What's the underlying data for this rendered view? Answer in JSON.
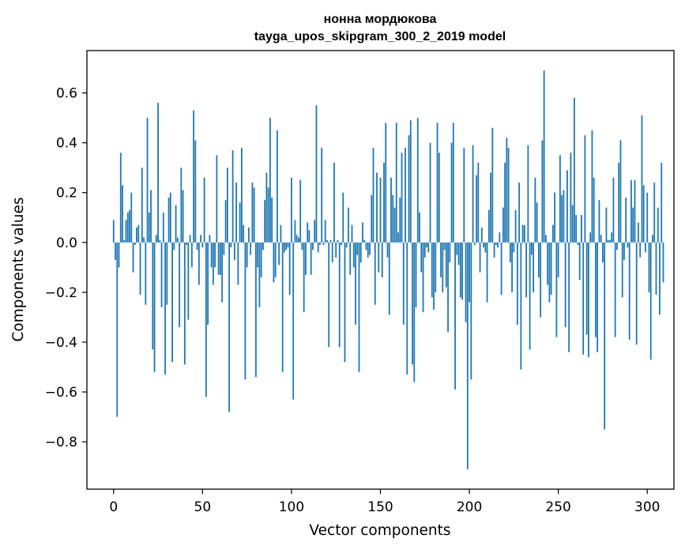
{
  "chart_data": {
    "type": "bar",
    "title": "нонна мордюкова",
    "subtitle": "tayga_upos_skipgram_300_2_2019 model",
    "xlabel": "Vector components",
    "ylabel": "Components values",
    "xlim": [
      -15,
      315
    ],
    "ylim": [
      -0.99,
      0.77
    ],
    "xticks": [
      0,
      50,
      100,
      150,
      200,
      250,
      300
    ],
    "yticks": [
      -0.8,
      -0.6,
      -0.4,
      -0.2,
      0.0,
      0.2,
      0.4,
      0.6
    ],
    "ytick_labels": [
      "−0.8",
      "−0.6",
      "−0.4",
      "−0.2",
      "0.0",
      "0.2",
      "0.4",
      "0.6"
    ],
    "bar_color": "#1f77b4",
    "grid": false,
    "values": [
      0.09,
      -0.07,
      -0.7,
      -0.1,
      0.36,
      0.23,
      0.01,
      0.09,
      0.12,
      0.13,
      0.2,
      -0.12,
      -0.01,
      0.06,
      0.07,
      -0.21,
      0.3,
      0.02,
      -0.25,
      0.5,
      0.12,
      0.21,
      -0.43,
      -0.52,
      0.03,
      0.56,
      0.01,
      -0.26,
      0.12,
      -0.53,
      -0.25,
      0.18,
      0.2,
      -0.48,
      -0.03,
      0.15,
      0.02,
      -0.34,
      0.3,
      0.21,
      -0.49,
      -0.01,
      -0.31,
      0.03,
      -0.1,
      0.53,
      0.41,
      -0.03,
      -0.17,
      0.03,
      -0.02,
      0.26,
      -0.62,
      -0.33,
      0.03,
      -0.1,
      -0.17,
      -0.1,
      0.35,
      -0.13,
      -0.13,
      -0.24,
      -0.05,
      0.17,
      0.3,
      -0.68,
      -0.02,
      0.37,
      -0.07,
      0.24,
      -0.17,
      0.16,
      0.38,
      0.07,
      -0.55,
      -0.1,
      0.06,
      -0.05,
      0.24,
      0.22,
      -0.54,
      -0.1,
      -0.26,
      -0.14,
      -0.03,
      0.17,
      0.28,
      0.22,
      0.5,
      0.18,
      -0.16,
      -0.14,
      0.45,
      -0.09,
      0.07,
      -0.52,
      -0.04,
      -0.03,
      -0.02,
      -0.21,
      0.26,
      -0.63,
      0.09,
      0.03,
      0.02,
      0.25,
      -0.03,
      -0.28,
      -0.13,
      0.08,
      0.05,
      -0.13,
      -0.03,
      0.09,
      0.55,
      -0.04,
      -0.01,
      0.38,
      -0.01,
      0.09,
      0.01,
      -0.42,
      0.01,
      -0.08,
      0.32,
      -0.06,
      0.01,
      -0.42,
      -0.01,
      0.2,
      -0.48,
      -0.02,
      0.14,
      -0.13,
      0.07,
      -0.1,
      -0.33,
      -0.05,
      -0.52,
      -0.08,
      0.08,
      0.01,
      -0.03,
      -0.06,
      -0.05,
      0.19,
      0.38,
      -0.25,
      0.28,
      -0.12,
      0.26,
      -0.14,
      0.32,
      0.48,
      -0.06,
      -0.29,
      0.26,
      0.19,
      0.14,
      0.48,
      0.04,
      0.18,
      0.36,
      -0.33,
      0.38,
      -0.53,
      0.43,
      0.49,
      -0.49,
      -0.56,
      -0.26,
      0.5,
      0.12,
      -0.12,
      -0.28,
      -0.06,
      -0.02,
      -0.04,
      0.4,
      -0.22,
      -0.27,
      -0.2,
      0.48,
      0.36,
      -0.14,
      -0.2,
      -0.03,
      -0.18,
      -0.36,
      -0.08,
      0.4,
      0.48,
      -0.59,
      -0.05,
      -0.09,
      -0.22,
      -0.23,
      0.38,
      -0.32,
      -0.91,
      -0.24,
      -0.55,
      0.39,
      -0.01,
      0.27,
      0.32,
      -0.12,
      0.06,
      -0.02,
      -0.04,
      -0.24,
      0.13,
      0.28,
      0.46,
      -0.06,
      -0.01,
      -0.02,
      0.04,
      -0.21,
      0.14,
      0.32,
      0.42,
      0.38,
      -0.08,
      -0.2,
      -0.04,
      0.13,
      -0.33,
      0.24,
      -0.51,
      0.07,
      0.07,
      -0.22,
      0.39,
      -0.43,
      -0.05,
      -0.2,
      0.26,
      0.16,
      -0.14,
      -0.3,
      0.41,
      0.69,
      0.03,
      -0.17,
      -0.24,
      -0.21,
      0.07,
      0.2,
      -0.38,
      -0.14,
      0.35,
      0.19,
      0.21,
      -0.34,
      0.29,
      -0.44,
      0.36,
      0.15,
      0.58,
      0.11,
      -0.01,
      -0.15,
      0.11,
      -0.45,
      0.43,
      -0.37,
      -0.46,
      0.04,
      0.45,
      0.26,
      -0.38,
      -0.44,
      0.17,
      0.03,
      -0.08,
      -0.75,
      0.14,
      0.01,
      0.01,
      0.04,
      0.26,
      -0.38,
      -0.03,
      0.32,
      0.41,
      -0.22,
      -0.07,
      0.18,
      -0.02,
      -0.39,
      0.25,
      0.14,
      0.25,
      -0.41,
      0.08,
      -0.06,
      0.51,
      0.23,
      -0.04,
      0.2,
      -0.2,
      -0.47,
      0.03,
      0.24,
      -0.21,
      0.14,
      -0.29,
      0.32,
      -0.16
    ]
  }
}
